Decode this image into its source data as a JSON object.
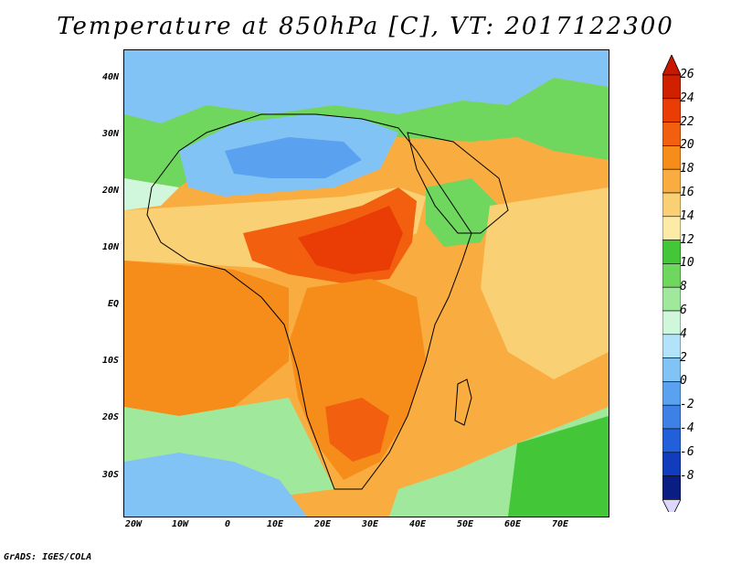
{
  "title": "Temperature at 850hPa [C], VT: 2017122300",
  "credit": "GrADS: IGES/COLA",
  "map": {
    "lat_labels": [
      "40N",
      "30N",
      "20N",
      "10N",
      "EQ",
      "10S",
      "20S",
      "30S"
    ],
    "lon_labels": [
      "20W",
      "10W",
      "0",
      "10E",
      "20E",
      "30E",
      "40E",
      "50E",
      "60E",
      "70E"
    ],
    "lat_range": [
      -36.5,
      44.5
    ],
    "lon_range": [
      -22,
      80
    ]
  },
  "colorbar": {
    "labels": [
      "26",
      "24",
      "22",
      "20",
      "18",
      "16",
      "14",
      "12",
      "10",
      "8",
      "6",
      "4",
      "2",
      "0",
      "-2",
      "-4",
      "-6",
      "-8"
    ],
    "colors": [
      "#d12000",
      "#ea3c05",
      "#f2600f",
      "#f68c1a",
      "#f9ac3f",
      "#fad074",
      "#fbeba6",
      "#43c637",
      "#6fd75e",
      "#a0e89b",
      "#d0f6dc",
      "#b3e3fb",
      "#82c3f6",
      "#5aa2ef",
      "#3d80e6",
      "#2160d9",
      "#123cbe",
      "#0a1d82"
    ],
    "units": "C"
  }
}
